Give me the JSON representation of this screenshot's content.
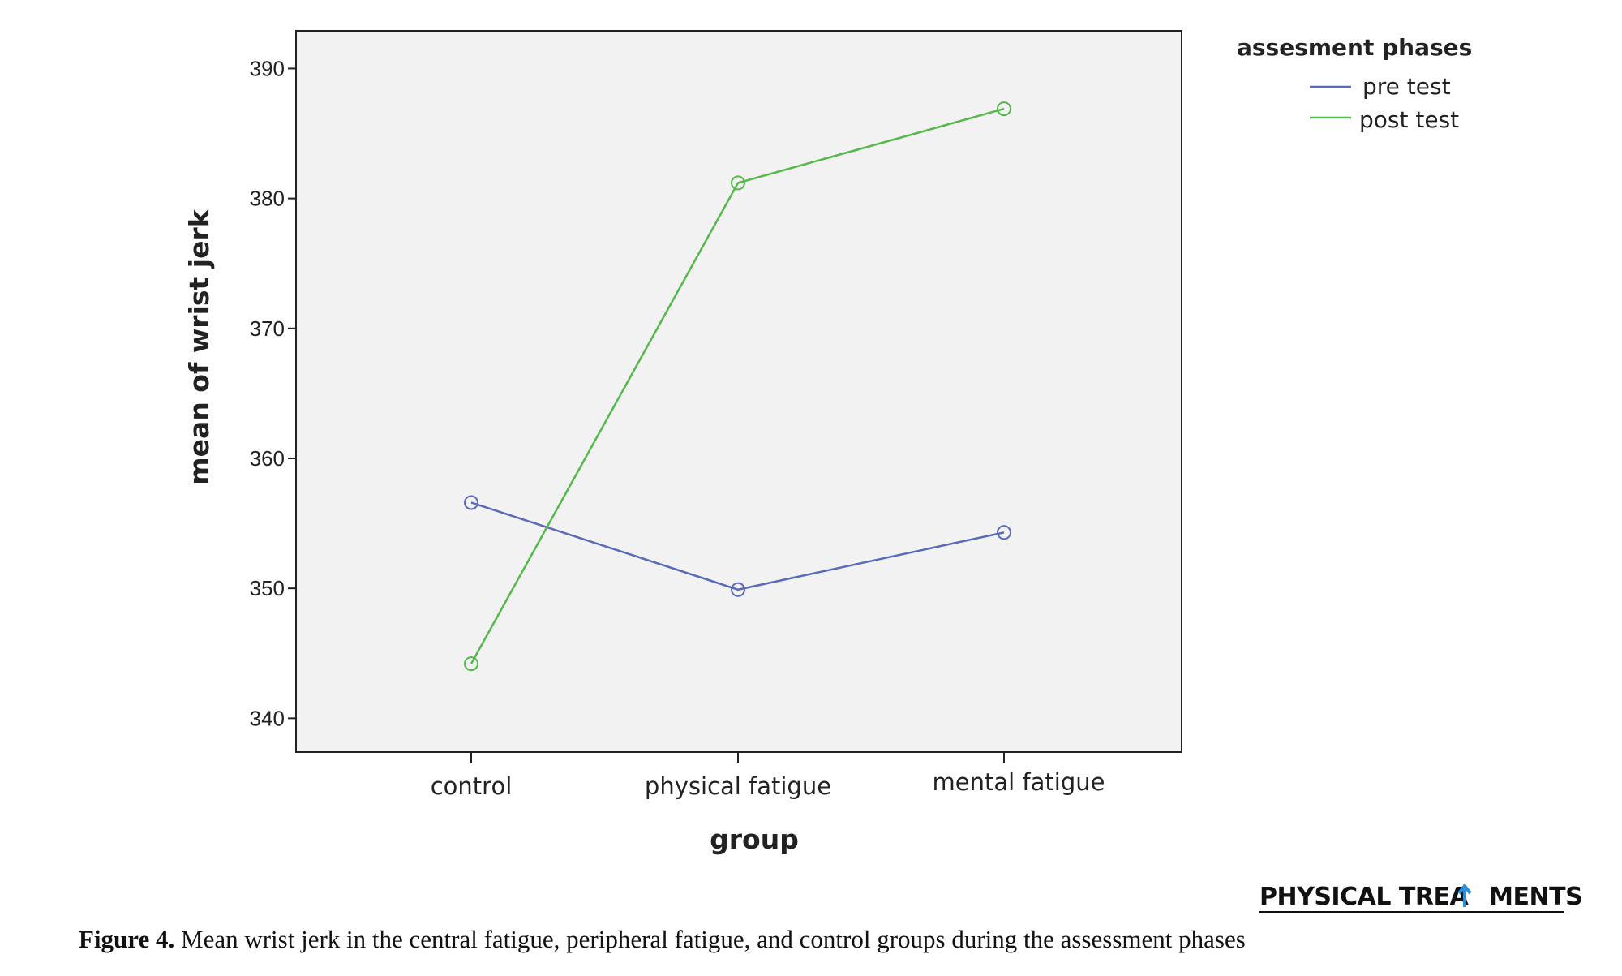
{
  "chart_data": {
    "type": "line",
    "xlabel": "group",
    "ylabel": "mean of wrist jerk",
    "categories": [
      "control",
      "physical fatigue",
      "mental fatigue"
    ],
    "ylim": [
      337.4,
      392.9
    ],
    "yticks": [
      340,
      350,
      360,
      370,
      380,
      390
    ],
    "grid": false,
    "legend": {
      "title": "assesment phases",
      "placement": "right"
    },
    "series": [
      {
        "name": "pre test",
        "color": "#5b6ab8",
        "values": [
          356.6,
          349.9,
          354.3
        ]
      },
      {
        "name": "post test",
        "color": "#55b84a",
        "values": [
          344.2,
          381.2,
          386.9
        ]
      }
    ]
  },
  "brand": {
    "left": "PHYSICAL TREA",
    "right": "MENTS"
  },
  "caption": {
    "label": "Figure 4.",
    "text": " Mean wrist jerk in the central fatigue, peripheral fatigue, and control groups during the assessment phases"
  }
}
